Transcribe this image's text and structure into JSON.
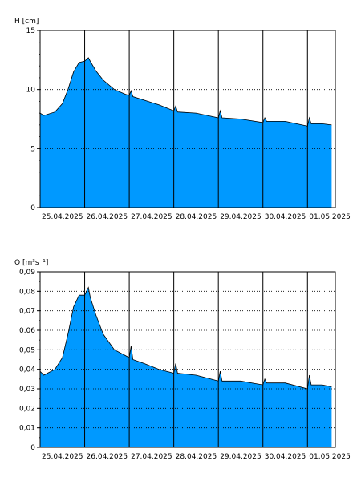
{
  "colors": {
    "fill": "#0099ff",
    "stroke": "#000000",
    "grid": "#000000",
    "background": "#ffffff"
  },
  "chart_data": [
    {
      "type": "area",
      "ylabel": "H [cm]",
      "ylim": [
        0,
        15
      ],
      "yticks": [
        0,
        5,
        10,
        15
      ],
      "yticklabels": [
        "0",
        "5",
        "10",
        "15"
      ],
      "y_minor_step": 1,
      "xlim": [
        "2025-04-25T00:00",
        "2025-05-01T15:00"
      ],
      "xticklabels": [
        "25.04.2025",
        "26.04.2025",
        "27.04.2025",
        "28.04.2025",
        "29.04.2025",
        "30.04.2025",
        "01.05.2025"
      ],
      "grid": {
        "vertical": "solid at each day",
        "horizontal": "dotted"
      },
      "x": [
        "2025-04-25T00:00",
        "2025-04-25T02:00",
        "2025-04-25T04:00",
        "2025-04-25T08:00",
        "2025-04-25T12:00",
        "2025-04-25T15:00",
        "2025-04-25T18:00",
        "2025-04-25T21:00",
        "2025-04-26T00:00",
        "2025-04-26T02:00",
        "2025-04-26T03:00",
        "2025-04-26T06:00",
        "2025-04-26T10:00",
        "2025-04-26T16:00",
        "2025-04-26T22:00",
        "2025-04-27T00:00",
        "2025-04-27T01:00",
        "2025-04-27T02:00",
        "2025-04-27T08:00",
        "2025-04-27T16:00",
        "2025-04-28T00:00",
        "2025-04-28T01:00",
        "2025-04-28T02:00",
        "2025-04-28T12:00",
        "2025-04-29T00:00",
        "2025-04-29T01:00",
        "2025-04-29T02:00",
        "2025-04-29T12:00",
        "2025-04-30T00:00",
        "2025-04-30T01:00",
        "2025-04-30T02:00",
        "2025-04-30T12:00",
        "2025-05-01T00:00",
        "2025-05-01T01:00",
        "2025-05-01T02:00",
        "2025-05-01T08:00",
        "2025-05-01T13:00"
      ],
      "series": [
        {
          "values": [
            8.0,
            7.8,
            7.9,
            8.1,
            8.8,
            10.0,
            11.5,
            12.3,
            12.4,
            12.7,
            12.4,
            11.6,
            10.8,
            10.0,
            9.6,
            9.5,
            9.9,
            9.4,
            9.1,
            8.7,
            8.2,
            8.6,
            8.1,
            8.0,
            7.6,
            8.2,
            7.6,
            7.5,
            7.2,
            7.6,
            7.3,
            7.3,
            6.9,
            7.6,
            7.1,
            7.1,
            7.0
          ]
        }
      ]
    },
    {
      "type": "area",
      "ylabel": "Q [m³s⁻¹]",
      "ylim": [
        0,
        0.09
      ],
      "yticks": [
        0,
        0.01,
        0.02,
        0.03,
        0.04,
        0.05,
        0.06,
        0.07,
        0.08,
        0.09
      ],
      "yticklabels": [
        "0",
        "0,01",
        "0,02",
        "0,03",
        "0,04",
        "0,05",
        "0,06",
        "0,07",
        "0,08",
        "0,09"
      ],
      "y_minor_step": 0.005,
      "xlim": [
        "2025-04-25T00:00",
        "2025-05-01T15:00"
      ],
      "xticklabels": [
        "25.04.2025",
        "26.04.2025",
        "27.04.2025",
        "28.04.2025",
        "29.04.2025",
        "30.04.2025",
        "01.05.2025"
      ],
      "grid": {
        "vertical": "solid at each day",
        "horizontal": "dotted"
      },
      "x": [
        "2025-04-25T00:00",
        "2025-04-25T02:00",
        "2025-04-25T04:00",
        "2025-04-25T08:00",
        "2025-04-25T12:00",
        "2025-04-25T15:00",
        "2025-04-25T18:00",
        "2025-04-25T21:00",
        "2025-04-26T00:00",
        "2025-04-26T02:00",
        "2025-04-26T03:00",
        "2025-04-26T06:00",
        "2025-04-26T10:00",
        "2025-04-26T16:00",
        "2025-04-26T22:00",
        "2025-04-27T00:00",
        "2025-04-27T01:00",
        "2025-04-27T02:00",
        "2025-04-27T08:00",
        "2025-04-27T16:00",
        "2025-04-28T00:00",
        "2025-04-28T01:00",
        "2025-04-28T02:00",
        "2025-04-28T12:00",
        "2025-04-29T00:00",
        "2025-04-29T01:00",
        "2025-04-29T02:00",
        "2025-04-29T12:00",
        "2025-04-30T00:00",
        "2025-04-30T01:00",
        "2025-04-30T02:00",
        "2025-04-30T12:00",
        "2025-05-01T00:00",
        "2025-05-01T01:00",
        "2025-05-01T02:00",
        "2025-05-01T08:00",
        "2025-05-01T13:00"
      ],
      "series": [
        {
          "values": [
            0.039,
            0.037,
            0.038,
            0.04,
            0.046,
            0.058,
            0.072,
            0.078,
            0.078,
            0.082,
            0.077,
            0.068,
            0.058,
            0.05,
            0.047,
            0.046,
            0.052,
            0.045,
            0.043,
            0.04,
            0.038,
            0.043,
            0.038,
            0.037,
            0.034,
            0.039,
            0.034,
            0.034,
            0.032,
            0.035,
            0.033,
            0.033,
            0.03,
            0.037,
            0.032,
            0.032,
            0.031
          ]
        }
      ]
    }
  ]
}
